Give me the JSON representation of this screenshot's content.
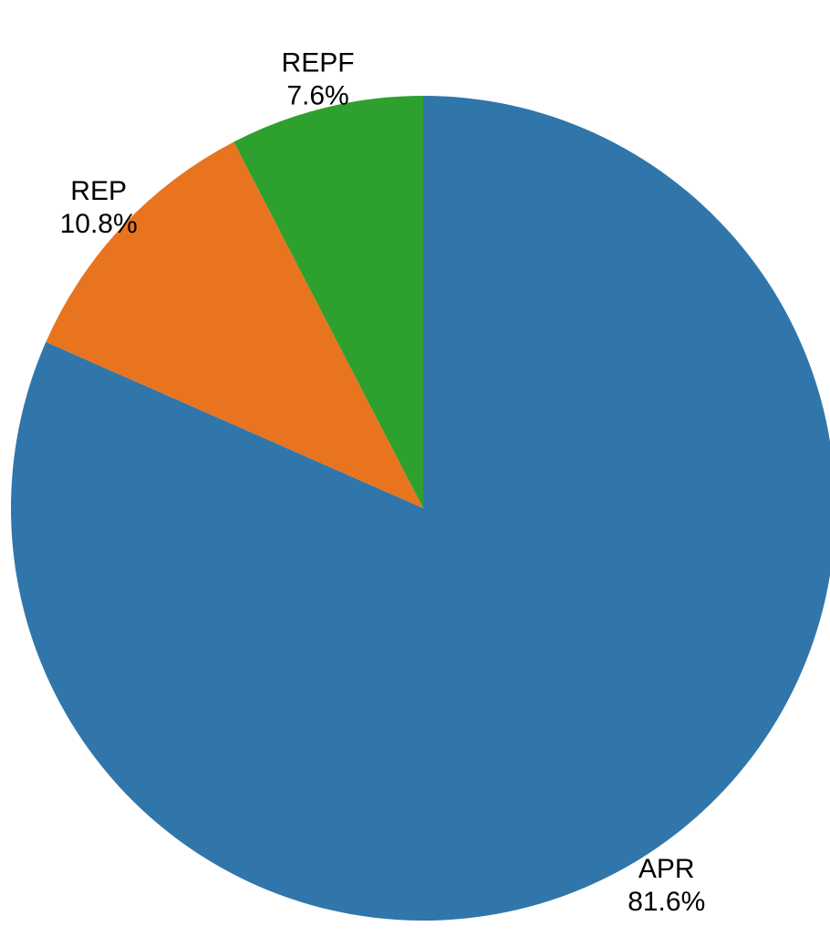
{
  "chart_data": {
    "type": "pie",
    "title": "",
    "start_angle": "12 o'clock",
    "direction": "clockwise",
    "slices": [
      {
        "label": "APR",
        "value": 81.6,
        "value_label": "81.6%",
        "color": "#3076ab"
      },
      {
        "label": "REP",
        "value": 10.8,
        "value_label": "10.8%",
        "color": "#e8741f"
      },
      {
        "label": "REPF",
        "value": 7.6,
        "value_label": "7.6%",
        "color": "#2ea02e"
      }
    ]
  }
}
